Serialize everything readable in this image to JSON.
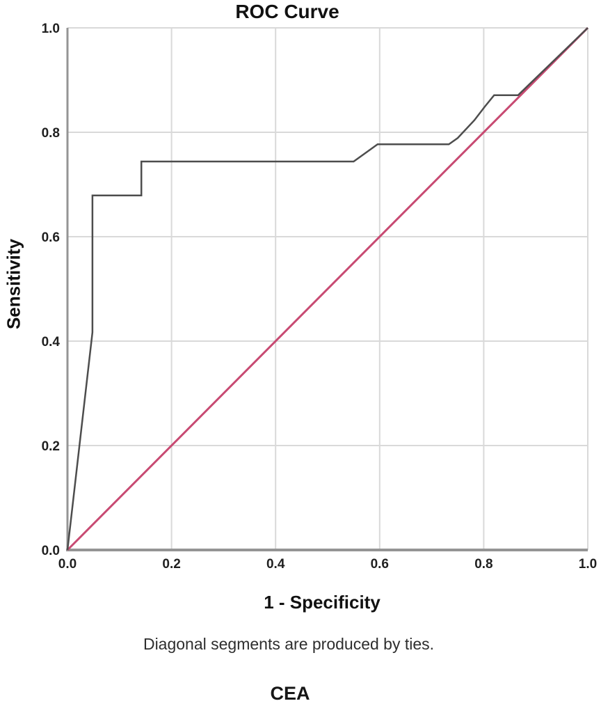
{
  "title": "ROC Curve",
  "footnote": "Diagonal segments are produced by ties.",
  "caption": "CEA",
  "colors": {
    "curve": "#4d4d4d",
    "reference_line": "#c84a72",
    "grid": "#d9d9d9",
    "axis": "#949494",
    "text": "#1f1f1f"
  },
  "chart_data": {
    "type": "line",
    "title": "ROC Curve",
    "xlabel": "1 - Specificity",
    "ylabel": "Sensitivity",
    "xlim": [
      0.0,
      1.0
    ],
    "ylim": [
      0.0,
      1.0
    ],
    "grid": true,
    "legend": "none",
    "xtick_values": [
      0.0,
      0.2,
      0.4,
      0.6,
      0.8,
      1.0
    ],
    "xtick_labels": [
      "0.0",
      "0.2",
      "0.4",
      "0.6",
      "0.8",
      "1.0"
    ],
    "ytick_values": [
      0.0,
      0.2,
      0.4,
      0.6,
      0.8,
      1.0
    ],
    "ytick_labels": [
      "0.0",
      "0.2",
      "0.4",
      "0.6",
      "0.8",
      "1.0"
    ],
    "series": [
      {
        "name": "Reference Line",
        "color": "#c84a72",
        "stroke_width": 3,
        "points": [
          [
            0.0,
            0.0
          ],
          [
            1.0,
            1.0
          ]
        ]
      },
      {
        "name": "CEA ROC curve",
        "color": "#4d4d4d",
        "stroke_width": 2.5,
        "points": [
          [
            0.0,
            0.0
          ],
          [
            0.048,
            0.417
          ],
          [
            0.048,
            0.679
          ],
          [
            0.142,
            0.679
          ],
          [
            0.142,
            0.744
          ],
          [
            0.55,
            0.744
          ],
          [
            0.596,
            0.777
          ],
          [
            0.733,
            0.777
          ],
          [
            0.75,
            0.789
          ],
          [
            0.782,
            0.823
          ],
          [
            0.802,
            0.849
          ],
          [
            0.82,
            0.871
          ],
          [
            0.866,
            0.871
          ],
          [
            1.0,
            1.0
          ]
        ]
      }
    ]
  }
}
